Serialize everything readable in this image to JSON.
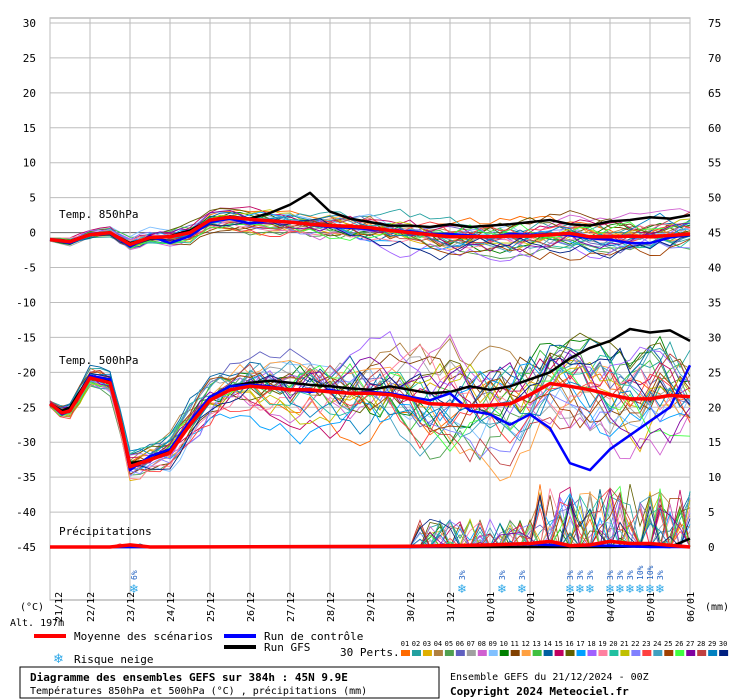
{
  "chart_data": {
    "type": "line",
    "left_axis": {
      "unit": "(°C)",
      "ticks": [
        30,
        25,
        20,
        15,
        10,
        5,
        0,
        -5,
        -10,
        -15,
        -20,
        -25,
        -30,
        -35,
        -40,
        -45
      ]
    },
    "right_axis": {
      "unit": "(mm)",
      "ticks": [
        75,
        70,
        65,
        60,
        55,
        50,
        45,
        40,
        35,
        30,
        25,
        20,
        15,
        10,
        5,
        0
      ]
    },
    "x_ticks": [
      "22/12",
      "23/12",
      "24/12",
      "25/12",
      "26/12",
      "27/12",
      "28/12",
      "29/12",
      "30/12",
      "31/12",
      "01/01",
      "02/01",
      "03/01",
      "04/01",
      "05/01",
      "06/01"
    ],
    "x_ticks_extra": "21/12",
    "panel_labels": {
      "t850": "Temp. 850hPa",
      "t500": "Temp. 500hPa",
      "precip": "Précipitations"
    },
    "altitude": "Alt. 197m",
    "snow_risk": [
      {
        "x": 2.1,
        "pct": "6%"
      },
      {
        "x": 10.3,
        "pct": "3%"
      },
      {
        "x": 11.3,
        "pct": "3%"
      },
      {
        "x": 11.8,
        "pct": "3%"
      },
      {
        "x": 13.0,
        "pct": "3%"
      },
      {
        "x": 13.25,
        "pct": "3%"
      },
      {
        "x": 13.5,
        "pct": "3%"
      },
      {
        "x": 14.0,
        "pct": "3%"
      },
      {
        "x": 14.25,
        "pct": "3%"
      },
      {
        "x": 14.5,
        "pct": "3%"
      },
      {
        "x": 14.75,
        "pct": "10%"
      },
      {
        "x": 15.0,
        "pct": "10%"
      },
      {
        "x": 15.25,
        "pct": "3%"
      }
    ],
    "series": [
      {
        "name": "Moyenne des scénarios",
        "color": "#ff0000",
        "t850": [
          [
            0,
            -1
          ],
          [
            0.5,
            -1.3
          ],
          [
            1,
            -0.3
          ],
          [
            1.5,
            0
          ],
          [
            2,
            -1.7
          ],
          [
            2.5,
            -0.7
          ],
          [
            3,
            -0.6
          ],
          [
            3.5,
            0
          ],
          [
            4,
            1.8
          ],
          [
            4.5,
            2.2
          ],
          [
            5,
            1.9
          ],
          [
            5.5,
            1.7
          ],
          [
            6,
            1.5
          ],
          [
            6.5,
            1.2
          ],
          [
            7,
            1
          ],
          [
            7.5,
            0.9
          ],
          [
            8,
            0.7
          ],
          [
            8.5,
            0.3
          ],
          [
            9,
            0
          ],
          [
            9.5,
            -0.3
          ],
          [
            10,
            -0.6
          ],
          [
            10.5,
            -0.6
          ],
          [
            11,
            -0.6
          ],
          [
            11.5,
            -0.5
          ],
          [
            12,
            -0.5
          ],
          [
            12.5,
            -0.3
          ],
          [
            13,
            -0.1
          ],
          [
            13.5,
            -0.6
          ],
          [
            14,
            -0.6
          ],
          [
            14.5,
            -0.5
          ],
          [
            15,
            -0.6
          ],
          [
            15.5,
            -0.4
          ],
          [
            16,
            -0.2
          ]
        ],
        "t500": [
          [
            0,
            -24.5
          ],
          [
            0.3,
            -25.8
          ],
          [
            0.5,
            -25.5
          ],
          [
            1,
            -20.8
          ],
          [
            1.5,
            -21.5
          ],
          [
            1.8,
            -28
          ],
          [
            2,
            -33.5
          ],
          [
            2.5,
            -32.5
          ],
          [
            3,
            -31.5
          ],
          [
            3.5,
            -27.5
          ],
          [
            4,
            -24
          ],
          [
            4.5,
            -22.5
          ],
          [
            5,
            -22
          ],
          [
            5.5,
            -22.2
          ],
          [
            6,
            -22.5
          ],
          [
            6.5,
            -22.5
          ],
          [
            7,
            -22.8
          ],
          [
            7.5,
            -23
          ],
          [
            8,
            -23
          ],
          [
            8.5,
            -23.2
          ],
          [
            9,
            -23.8
          ],
          [
            9.5,
            -24.5
          ],
          [
            10,
            -24.6
          ],
          [
            10.5,
            -24.8
          ],
          [
            11,
            -24.7
          ],
          [
            11.5,
            -24.5
          ],
          [
            12,
            -23.2
          ],
          [
            12.5,
            -21.6
          ],
          [
            13,
            -22
          ],
          [
            13.5,
            -22.5
          ],
          [
            14,
            -23.2
          ],
          [
            14.5,
            -23.8
          ],
          [
            15,
            -23.8
          ],
          [
            15.5,
            -23.3
          ],
          [
            16,
            -23.5
          ]
        ],
        "precip": [
          [
            0,
            0
          ],
          [
            1.5,
            0
          ],
          [
            2,
            0.3
          ],
          [
            2.5,
            0
          ],
          [
            9,
            0.1
          ],
          [
            10,
            0.2
          ],
          [
            11,
            0.3
          ],
          [
            12,
            0.5
          ],
          [
            12.5,
            0.8
          ],
          [
            13,
            0.2
          ],
          [
            13.5,
            0.3
          ],
          [
            14,
            0.8
          ],
          [
            14.5,
            0.5
          ],
          [
            15,
            0.5
          ],
          [
            16,
            0
          ]
        ]
      },
      {
        "name": "Run de contrôle",
        "color": "#0000ff",
        "t850": [
          [
            0,
            -1
          ],
          [
            0.5,
            -1.5
          ],
          [
            1,
            -0.2
          ],
          [
            1.5,
            0
          ],
          [
            2,
            -2
          ],
          [
            2.5,
            -0.5
          ],
          [
            3,
            -1.5
          ],
          [
            3.5,
            -0.5
          ],
          [
            4,
            1.5
          ],
          [
            4.5,
            2
          ],
          [
            5,
            1.3
          ],
          [
            5.5,
            1.7
          ],
          [
            6,
            1.5
          ],
          [
            6.5,
            1.1
          ],
          [
            7,
            0.8
          ],
          [
            7.5,
            0.7
          ],
          [
            8,
            0.5
          ],
          [
            8.5,
            0.3
          ],
          [
            9,
            0.2
          ],
          [
            9.5,
            -0.2
          ],
          [
            10,
            -0.2
          ],
          [
            10.5,
            -0.4
          ],
          [
            11,
            -0.6
          ],
          [
            11.5,
            -0.2
          ],
          [
            12,
            -0.3
          ],
          [
            12.5,
            -0.2
          ],
          [
            13,
            -0.4
          ],
          [
            13.5,
            -0.8
          ],
          [
            14,
            -1
          ],
          [
            14.5,
            -1.5
          ],
          [
            15,
            -1.5
          ],
          [
            15.5,
            -0.7
          ],
          [
            16,
            -0.3
          ]
        ],
        "t500": [
          [
            0,
            -24.5
          ],
          [
            0.3,
            -26
          ],
          [
            0.5,
            -25.5
          ],
          [
            1,
            -20.5
          ],
          [
            1.5,
            -21
          ],
          [
            1.8,
            -28
          ],
          [
            2,
            -34
          ],
          [
            2.5,
            -32
          ],
          [
            3,
            -31
          ],
          [
            3.5,
            -27
          ],
          [
            4,
            -23.5
          ],
          [
            4.5,
            -22
          ],
          [
            5,
            -21.8
          ],
          [
            5.5,
            -22
          ],
          [
            6,
            -22.5
          ],
          [
            6.5,
            -22.8
          ],
          [
            7,
            -22.5
          ],
          [
            7.5,
            -23
          ],
          [
            8,
            -22.8
          ],
          [
            8.5,
            -23
          ],
          [
            9,
            -23.5
          ],
          [
            9.5,
            -24
          ],
          [
            10,
            -23
          ],
          [
            10.5,
            -25.5
          ],
          [
            11,
            -26
          ],
          [
            11.5,
            -27.5
          ],
          [
            12,
            -26
          ],
          [
            12.5,
            -28
          ],
          [
            13,
            -33
          ],
          [
            13.5,
            -34
          ],
          [
            14,
            -31
          ],
          [
            14.5,
            -29
          ],
          [
            15,
            -27
          ],
          [
            15.5,
            -25
          ],
          [
            16,
            -19
          ]
        ],
        "precip": [
          [
            0,
            0
          ],
          [
            9,
            0
          ],
          [
            10,
            0.1
          ],
          [
            11,
            0.3
          ],
          [
            12,
            0.4
          ],
          [
            13,
            0.2
          ],
          [
            14,
            0.2
          ],
          [
            15,
            0
          ],
          [
            16,
            0
          ]
        ]
      },
      {
        "name": "Run GFS",
        "color": "#000000",
        "t850": [
          [
            0,
            -1
          ],
          [
            0.5,
            -1.2
          ],
          [
            1,
            -0.2
          ],
          [
            1.5,
            0
          ],
          [
            2,
            -1.5
          ],
          [
            2.5,
            -0.8
          ],
          [
            3,
            -0.5
          ],
          [
            3.5,
            0.3
          ],
          [
            4,
            1.8
          ],
          [
            4.5,
            2.3
          ],
          [
            5,
            2
          ],
          [
            5.5,
            2.8
          ],
          [
            6,
            4
          ],
          [
            6.5,
            5.7
          ],
          [
            7,
            3
          ],
          [
            7.5,
            2
          ],
          [
            8,
            1.5
          ],
          [
            8.5,
            1
          ],
          [
            9,
            1
          ],
          [
            9.5,
            0.8
          ],
          [
            10,
            1.2
          ],
          [
            10.5,
            0.8
          ],
          [
            11,
            1
          ],
          [
            11.5,
            1.2
          ],
          [
            12,
            1.5
          ],
          [
            12.5,
            1.8
          ],
          [
            13,
            1.2
          ],
          [
            13.5,
            1
          ],
          [
            14,
            1.6
          ],
          [
            14.5,
            1.8
          ],
          [
            15,
            2.2
          ],
          [
            15.5,
            2
          ],
          [
            16,
            2.5
          ]
        ],
        "t500": [
          [
            0,
            -24.5
          ],
          [
            0.3,
            -25.5
          ],
          [
            0.5,
            -25
          ],
          [
            1,
            -20.5
          ],
          [
            1.5,
            -21.2
          ],
          [
            1.8,
            -28.5
          ],
          [
            2,
            -33
          ],
          [
            2.5,
            -32.5
          ],
          [
            3,
            -31
          ],
          [
            3.5,
            -27.5
          ],
          [
            4,
            -23.5
          ],
          [
            4.5,
            -22
          ],
          [
            5,
            -21.5
          ],
          [
            5.5,
            -21.2
          ],
          [
            6,
            -21.5
          ],
          [
            6.5,
            -21.8
          ],
          [
            7,
            -22
          ],
          [
            7.5,
            -22.3
          ],
          [
            8,
            -22.5
          ],
          [
            8.5,
            -22
          ],
          [
            9,
            -22.5
          ],
          [
            9.5,
            -23
          ],
          [
            10,
            -22.8
          ],
          [
            10.5,
            -22
          ],
          [
            11,
            -22.5
          ],
          [
            11.5,
            -22
          ],
          [
            12,
            -21
          ],
          [
            12.5,
            -20
          ],
          [
            13,
            -18
          ],
          [
            13.5,
            -16.5
          ],
          [
            14,
            -15.5
          ],
          [
            14.5,
            -13.8
          ],
          [
            15,
            -14.3
          ],
          [
            15.5,
            -14
          ],
          [
            16,
            -15.5
          ]
        ],
        "precip": [
          [
            0,
            0
          ],
          [
            14,
            0
          ],
          [
            15,
            0.1
          ],
          [
            15.5,
            0
          ],
          [
            16,
            1.2
          ]
        ]
      }
    ],
    "legend": {
      "mean": "Moyenne des scénarios",
      "control": "Run de contrôle",
      "gfs": "Run GFS",
      "snow": "Risque neige",
      "perts_label": "30 Perts.",
      "perts_numbers": [
        "01",
        "02",
        "03",
        "04",
        "05",
        "06",
        "07",
        "08",
        "09",
        "10",
        "11",
        "12",
        "13",
        "14",
        "15",
        "16",
        "17",
        "18",
        "19",
        "20",
        "21",
        "22",
        "23",
        "24",
        "25",
        "26",
        "27",
        "28",
        "29",
        "30"
      ],
      "perts_colors": [
        "#ff6a00",
        "#22a0a0",
        "#e0b000",
        "#b08040",
        "#50a050",
        "#6060c0",
        "#a0a0a0",
        "#d060d0",
        "#80c0ff",
        "#008000",
        "#804000",
        "#ffa040",
        "#40c040",
        "#0060a0",
        "#c00060",
        "#606000",
        "#00a0ff",
        "#a060ff",
        "#ff80a0",
        "#20c0a0",
        "#c0c000",
        "#8080ff",
        "#ff4040",
        "#40a0c0",
        "#a04000",
        "#40ff40",
        "#8000a0",
        "#c04040",
        "#0080c0",
        "#002080"
      ]
    },
    "footer": {
      "title": "Diagramme des ensembles GEFS sur 384h : 45N 9.9E",
      "subtitle": "Températures 850hPa et 500hPa (°C) , précipitations (mm)",
      "ensemble": "Ensemble GEFS du 21/12/2024 - 00Z",
      "copyright": "Copyright 2024 Meteociel.fr"
    }
  }
}
